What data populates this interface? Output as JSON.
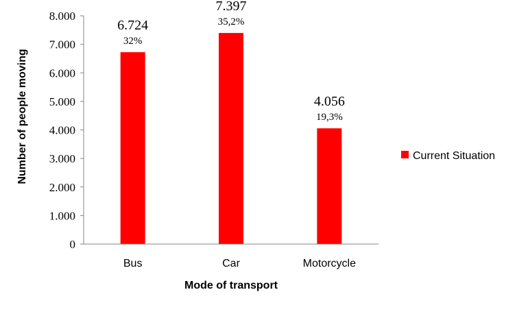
{
  "chart_data": {
    "type": "bar",
    "categories": [
      "Bus",
      "Car",
      "Motorcycle"
    ],
    "series": [
      {
        "name": "Current Situation",
        "values": [
          6724,
          7397,
          4056
        ],
        "value_labels": [
          "6.724",
          "7.397",
          "4.056"
        ],
        "percent_labels": [
          "32%",
          "35,2%",
          "19,3%"
        ],
        "color": "#ff0000"
      }
    ],
    "xlabel": "Mode of transport",
    "ylabel": "Number of people moving",
    "ylim": [
      0,
      8000
    ],
    "yticks": [
      0,
      1000,
      2000,
      3000,
      4000,
      5000,
      6000,
      7000,
      8000
    ],
    "ytick_labels": [
      "0",
      "1.000",
      "2.000",
      "3.000",
      "4.000",
      "5.000",
      "6.000",
      "7.000",
      "8.000"
    ],
    "grid": false,
    "legend_position": "right"
  }
}
